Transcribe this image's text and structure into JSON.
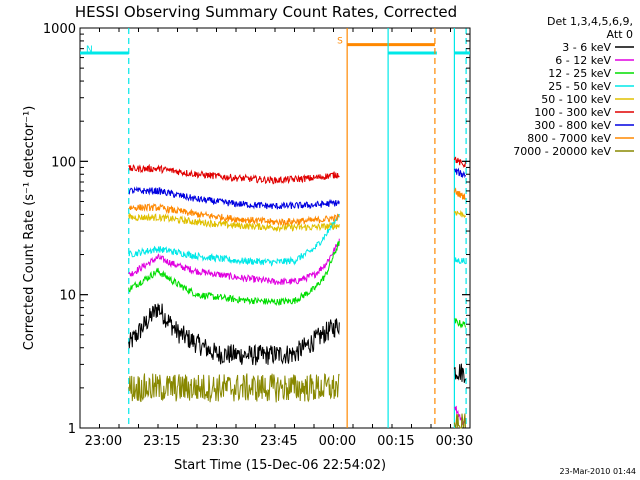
{
  "chart_data": {
    "type": "line",
    "title": "HESSI Observing Summary Count Rates, Corrected",
    "xlabel": "Start Time (15-Dec-06 22:54:02)",
    "ylabel": "Corrected Count Rate (s⁻¹ detector⁻¹)",
    "y_scale": "log",
    "ylim": [
      1,
      1000
    ],
    "xlim_minutes": [
      0,
      100
    ],
    "x_ticks": [
      "23:00",
      "23:15",
      "23:30",
      "23:45",
      "00:00",
      "00:15",
      "00:30"
    ],
    "x_tick_minutes": [
      6,
      21,
      36,
      51,
      66,
      81,
      96
    ],
    "y_ticks": [
      "1",
      "10",
      "100",
      "1000"
    ],
    "y_tick_values": [
      1,
      10,
      100,
      1000
    ],
    "legend": {
      "header": [
        "Det 1,3,4,5,6,9,",
        "Att 0"
      ],
      "placement": "right",
      "items": [
        {
          "label": "3 - 6 keV",
          "color": "#000000"
        },
        {
          "label": "6 - 12 keV",
          "color": "#e000e0"
        },
        {
          "label": "12 - 25 keV",
          "color": "#00dd00"
        },
        {
          "label": "25 - 50 keV",
          "color": "#00e8e8"
        },
        {
          "label": "50 - 100 keV",
          "color": "#e0c000"
        },
        {
          "label": "100 - 300 keV",
          "color": "#e00000"
        },
        {
          "label": "300 - 800 keV",
          "color": "#0000e0"
        },
        {
          "label": "800 - 7000 keV",
          "color": "#ff8800"
        },
        {
          "label": "7000 - 20000 keV",
          "color": "#888800"
        }
      ]
    },
    "flags": [
      {
        "label": "N",
        "x_range": [
          0,
          12.5
        ],
        "y": 650,
        "color": "#00e8e8"
      },
      {
        "label": "S",
        "x_range": [
          68.5,
          91
        ],
        "y": 750,
        "color": "#ff8800"
      },
      {
        "label": "",
        "x_range": [
          79,
          91.5
        ],
        "y": 650,
        "color": "#00e8e8"
      },
      {
        "label": "",
        "x_range": [
          96,
          100
        ],
        "y": 650,
        "color": "#00e8e8"
      }
    ],
    "vertical_markers": [
      {
        "x": 12.5,
        "color": "#00e8e8",
        "style": "dashed"
      },
      {
        "x": 68.5,
        "color": "#ff8800",
        "style": "solid"
      },
      {
        "x": 79,
        "color": "#00e8e8",
        "style": "solid"
      },
      {
        "x": 91,
        "color": "#ff8800",
        "style": "dashed"
      },
      {
        "x": 96,
        "color": "#00e8e8",
        "style": "solid"
      },
      {
        "x": 99,
        "color": "#00e8e8",
        "style": "dashed"
      }
    ],
    "segments_minutes": [
      [
        12.5,
        66.5
      ],
      [
        96,
        99
      ]
    ],
    "series": [
      {
        "name": "3 - 6 keV",
        "color": "#000000",
        "x": [
          12.5,
          20,
          25,
          30,
          35,
          45,
          55,
          60,
          63,
          66.5,
          96,
          97,
          98
        ],
        "y": [
          4.2,
          8,
          5.2,
          4.3,
          3.6,
          3.5,
          3.6,
          4.5,
          5.2,
          6,
          2.7,
          2.7,
          2.6
        ]
      },
      {
        "name": "6 - 12 keV",
        "color": "#e000e0",
        "x": [
          12.5,
          20,
          25,
          30,
          40,
          50,
          55,
          60,
          63,
          66.5,
          96,
          98
        ],
        "y": [
          14,
          19,
          16.5,
          15,
          13.5,
          12.5,
          12.5,
          14,
          17,
          25,
          1.5,
          1.1
        ]
      },
      {
        "name": "12 - 25 keV",
        "color": "#00dd00",
        "x": [
          12.5,
          20,
          25,
          30,
          40,
          50,
          55,
          60,
          63,
          66.5,
          96,
          98
        ],
        "y": [
          11,
          15,
          12,
          10,
          9.2,
          8.8,
          9,
          11,
          14,
          25,
          6.3,
          6
        ]
      },
      {
        "name": "25 - 50 keV",
        "color": "#00e8e8",
        "x": [
          12.5,
          20,
          30,
          40,
          50,
          55,
          60,
          63,
          66.5,
          96,
          98
        ],
        "y": [
          20,
          22,
          19.5,
          18,
          17.5,
          18,
          22,
          28,
          40,
          18,
          18
        ]
      },
      {
        "name": "50 - 100 keV",
        "color": "#e0c000",
        "x": [
          12.5,
          20,
          30,
          40,
          50,
          60,
          66.5,
          96,
          98
        ],
        "y": [
          38,
          38,
          35,
          33,
          32,
          32,
          33,
          42,
          40
        ]
      },
      {
        "name": "100 - 300 keV",
        "color": "#e00000",
        "x": [
          12.5,
          20,
          30,
          40,
          50,
          60,
          66.5,
          96,
          98
        ],
        "y": [
          88,
          88,
          80,
          75,
          72,
          75,
          80,
          105,
          95
        ]
      },
      {
        "name": "300 - 800 keV",
        "color": "#0000e0",
        "x": [
          12.5,
          20,
          30,
          40,
          50,
          60,
          66.5,
          96,
          98
        ],
        "y": [
          60,
          60,
          52,
          48,
          46,
          47,
          49,
          85,
          80
        ]
      },
      {
        "name": "800 - 7000 keV",
        "color": "#ff8800",
        "x": [
          12.5,
          20,
          30,
          40,
          50,
          60,
          66.5,
          96,
          98
        ],
        "y": [
          45,
          45,
          40,
          37,
          35,
          36,
          38,
          60,
          55
        ]
      },
      {
        "name": "7000 - 20000 keV",
        "color": "#888800",
        "x": [
          12.5,
          20,
          30,
          40,
          50,
          60,
          66.5,
          96,
          98
        ],
        "y": [
          2,
          2,
          2,
          2,
          2,
          2,
          2,
          1,
          1
        ]
      }
    ]
  },
  "footer": {
    "timestamp": "23-Mar-2010 01:44"
  }
}
